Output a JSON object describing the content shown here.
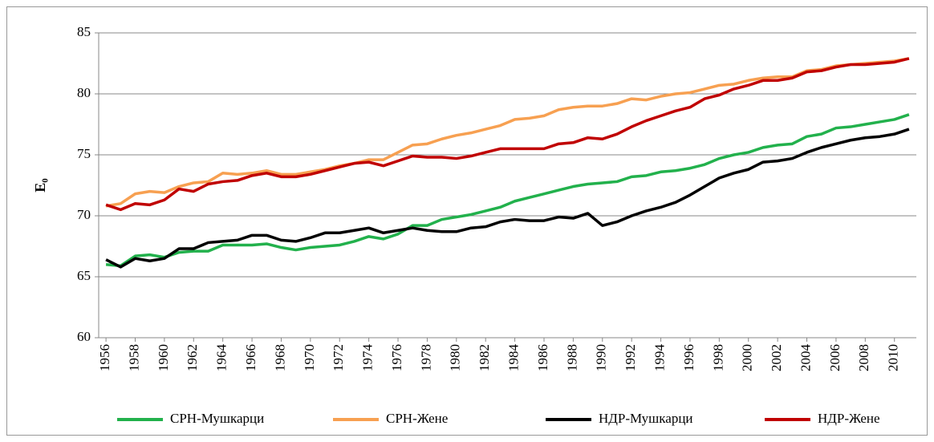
{
  "chart_data": {
    "type": "line",
    "ylabel": "E₀",
    "x": [
      1956,
      1957,
      1958,
      1959,
      1960,
      1961,
      1962,
      1963,
      1964,
      1965,
      1966,
      1967,
      1968,
      1969,
      1970,
      1971,
      1972,
      1973,
      1974,
      1975,
      1976,
      1977,
      1978,
      1979,
      1980,
      1981,
      1982,
      1983,
      1984,
      1985,
      1986,
      1987,
      1988,
      1989,
      1990,
      1991,
      1992,
      1993,
      1994,
      1995,
      1996,
      1997,
      1998,
      1999,
      2000,
      2001,
      2002,
      2003,
      2004,
      2005,
      2006,
      2007,
      2008,
      2009,
      2010,
      2011
    ],
    "xlim": [
      1955.5,
      2011.5
    ],
    "xticks": [
      1956,
      1958,
      1960,
      1962,
      1964,
      1966,
      1968,
      1970,
      1972,
      1974,
      1976,
      1978,
      1980,
      1982,
      1984,
      1986,
      1988,
      1990,
      1992,
      1994,
      1996,
      1998,
      2000,
      2002,
      2004,
      2006,
      2008,
      2010
    ],
    "ylim": [
      60,
      85
    ],
    "yticks": [
      60,
      65,
      70,
      75,
      80,
      85
    ],
    "grid": true,
    "legend": "bottom",
    "series": [
      {
        "name": "СРН-Мушкарци",
        "color": "#22b14c",
        "values": [
          66.0,
          65.9,
          66.7,
          66.8,
          66.6,
          67.0,
          67.1,
          67.1,
          67.6,
          67.6,
          67.6,
          67.7,
          67.4,
          67.2,
          67.4,
          67.5,
          67.6,
          67.9,
          68.3,
          68.1,
          68.5,
          69.2,
          69.2,
          69.7,
          69.9,
          70.1,
          70.4,
          70.7,
          71.2,
          71.5,
          71.8,
          72.1,
          72.4,
          72.6,
          72.7,
          72.8,
          73.2,
          73.3,
          73.6,
          73.7,
          73.9,
          74.2,
          74.7,
          75.0,
          75.2,
          75.6,
          75.8,
          75.9,
          76.5,
          76.7,
          77.2,
          77.3,
          77.5,
          77.7,
          77.9,
          78.3
        ]
      },
      {
        "name": "СРН-Жене",
        "color": "#f7a051",
        "values": [
          70.8,
          71.0,
          71.8,
          72.0,
          71.9,
          72.4,
          72.7,
          72.8,
          73.5,
          73.4,
          73.5,
          73.7,
          73.4,
          73.4,
          73.6,
          73.8,
          74.1,
          74.3,
          74.6,
          74.6,
          75.2,
          75.8,
          75.9,
          76.3,
          76.6,
          76.8,
          77.1,
          77.4,
          77.9,
          78.0,
          78.2,
          78.7,
          78.9,
          79.0,
          79.0,
          79.2,
          79.6,
          79.5,
          79.8,
          80.0,
          80.1,
          80.4,
          80.7,
          80.8,
          81.1,
          81.3,
          81.4,
          81.4,
          81.9,
          82.0,
          82.3,
          82.4,
          82.5,
          82.6,
          82.7,
          82.9
        ]
      },
      {
        "name": "НДР-Мушкарци",
        "color": "#000000",
        "values": [
          66.4,
          65.8,
          66.5,
          66.3,
          66.5,
          67.3,
          67.3,
          67.8,
          67.9,
          68.0,
          68.4,
          68.4,
          68.0,
          67.9,
          68.2,
          68.6,
          68.6,
          68.8,
          69.0,
          68.6,
          68.8,
          69.0,
          68.8,
          68.7,
          68.7,
          69.0,
          69.1,
          69.5,
          69.7,
          69.6,
          69.6,
          69.9,
          69.8,
          70.2,
          69.2,
          69.5,
          70.0,
          70.4,
          70.7,
          71.1,
          71.7,
          72.4,
          73.1,
          73.5,
          73.8,
          74.4,
          74.5,
          74.7,
          75.2,
          75.6,
          75.9,
          76.2,
          76.4,
          76.5,
          76.7,
          77.1
        ]
      },
      {
        "name": "НДР-Жене",
        "color": "#c00000",
        "values": [
          70.9,
          70.5,
          71.0,
          70.9,
          71.3,
          72.2,
          72.0,
          72.6,
          72.8,
          72.9,
          73.3,
          73.5,
          73.2,
          73.2,
          73.4,
          73.7,
          74.0,
          74.3,
          74.4,
          74.1,
          74.5,
          74.9,
          74.8,
          74.8,
          74.7,
          74.9,
          75.2,
          75.5,
          75.5,
          75.5,
          75.5,
          75.9,
          76.0,
          76.4,
          76.3,
          76.7,
          77.3,
          77.8,
          78.2,
          78.6,
          78.9,
          79.6,
          79.9,
          80.4,
          80.7,
          81.1,
          81.1,
          81.3,
          81.8,
          81.9,
          82.2,
          82.4,
          82.4,
          82.5,
          82.6,
          82.9
        ]
      }
    ]
  }
}
